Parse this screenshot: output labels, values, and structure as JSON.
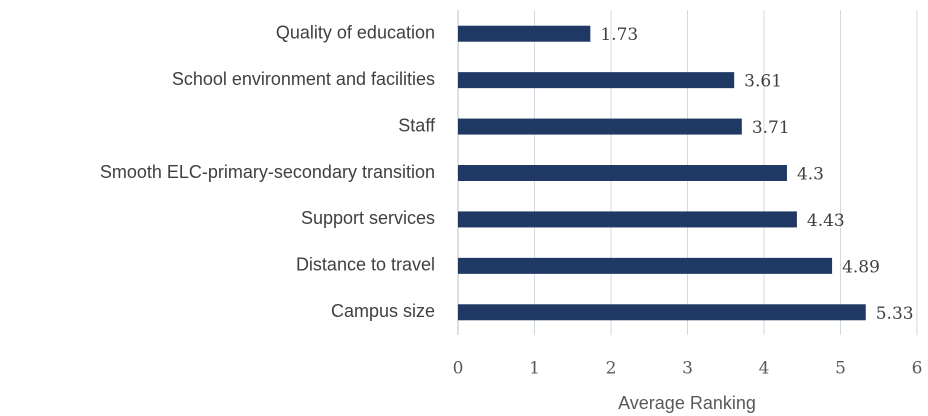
{
  "chart_data": {
    "type": "bar",
    "orientation": "horizontal",
    "categories": [
      "Quality of education",
      "School environment and facilities",
      "Staff",
      "Smooth ELC-primary-secondary transition",
      "Support services",
      "Distance to travel",
      "Campus size"
    ],
    "values": [
      1.73,
      3.61,
      3.71,
      4.3,
      4.43,
      4.89,
      5.33
    ],
    "color": "#1f3864",
    "xlabel": "Average Ranking",
    "xlim": [
      0,
      6
    ],
    "xticks": [
      0,
      1,
      2,
      3,
      4,
      5,
      6
    ],
    "grid": true
  }
}
